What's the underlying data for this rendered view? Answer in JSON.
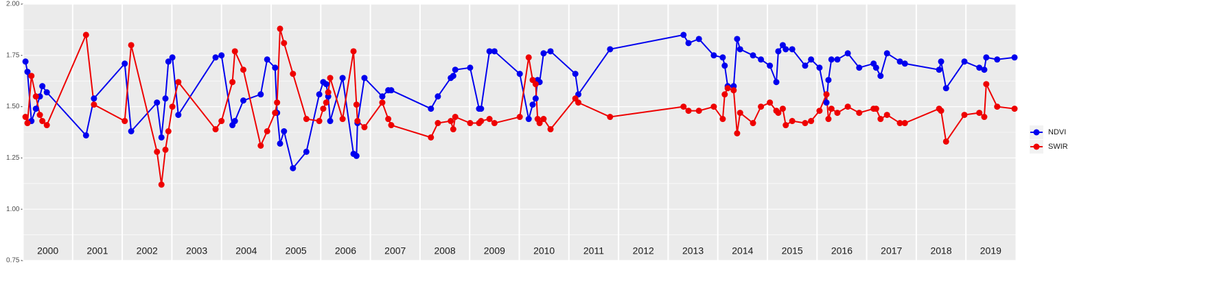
{
  "chart_data": {
    "type": "line",
    "x": [
      2000.05,
      2000.09,
      2000.17,
      2000.26,
      2000.34,
      2000.39,
      2000.48,
      2001.27,
      2001.43,
      2002.05,
      2002.18,
      2002.7,
      2002.79,
      2002.87,
      2002.93,
      2003.01,
      2003.13,
      2003.88,
      2004.0,
      2004.22,
      2004.27,
      2004.44,
      2004.79,
      2004.92,
      2005.08,
      2005.12,
      2005.18,
      2005.26,
      2005.44,
      2005.71,
      2005.97,
      2006.05,
      2006.11,
      2006.15,
      2006.19,
      2006.44,
      2006.66,
      2006.72,
      2006.74,
      2006.88,
      2007.24,
      2007.36,
      2007.42,
      2008.22,
      2008.36,
      2008.62,
      2008.67,
      2008.71,
      2009.01,
      2009.19,
      2009.23,
      2009.4,
      2009.5,
      2010.01,
      2010.19,
      2010.27,
      2010.33,
      2010.37,
      2010.41,
      2010.49,
      2010.63,
      2011.13,
      2011.19,
      2011.83,
      2013.31,
      2013.41,
      2013.62,
      2013.92,
      2014.1,
      2014.14,
      2014.2,
      2014.32,
      2014.39,
      2014.45,
      2014.71,
      2014.87,
      2015.05,
      2015.18,
      2015.22,
      2015.31,
      2015.37,
      2015.5,
      2015.76,
      2015.88,
      2016.05,
      2016.19,
      2016.23,
      2016.29,
      2016.41,
      2016.62,
      2016.85,
      2017.14,
      2017.19,
      2017.28,
      2017.41,
      2017.67,
      2017.77,
      2018.46,
      2018.5,
      2018.6,
      2018.97,
      2019.27,
      2019.37,
      2019.41,
      2019.63,
      2019.98
    ],
    "series": [
      {
        "name": "NDVI",
        "color": "#0000ee",
        "values": [
          1.72,
          1.67,
          1.43,
          1.49,
          1.55,
          1.6,
          1.57,
          1.36,
          1.54,
          1.71,
          1.38,
          1.52,
          1.35,
          1.54,
          1.72,
          1.74,
          1.46,
          1.74,
          1.75,
          1.41,
          1.43,
          1.53,
          1.56,
          1.73,
          1.69,
          1.47,
          1.32,
          1.38,
          1.2,
          1.28,
          1.56,
          1.62,
          1.61,
          1.55,
          1.43,
          1.64,
          1.27,
          1.26,
          1.42,
          1.64,
          1.55,
          1.58,
          1.58,
          1.49,
          1.55,
          1.64,
          1.65,
          1.68,
          1.69,
          1.49,
          1.49,
          1.77,
          1.77,
          1.66,
          1.44,
          1.51,
          1.54,
          1.63,
          1.62,
          1.76,
          1.77,
          1.66,
          1.56,
          1.78,
          1.85,
          1.81,
          1.83,
          1.75,
          1.74,
          1.7,
          1.6,
          1.6,
          1.83,
          1.78,
          1.75,
          1.73,
          1.7,
          1.62,
          1.77,
          1.8,
          1.78,
          1.78,
          1.7,
          1.73,
          1.69,
          1.52,
          1.63,
          1.73,
          1.73,
          1.76,
          1.69,
          1.71,
          1.69,
          1.65,
          1.76,
          1.72,
          1.71,
          1.68,
          1.72,
          1.59,
          1.72,
          1.69,
          1.68,
          1.74,
          1.73,
          1.74
        ]
      },
      {
        "name": "SWIR",
        "color": "#ee0000",
        "values": [
          1.45,
          1.42,
          1.65,
          1.55,
          1.46,
          1.43,
          1.41,
          1.85,
          1.51,
          1.43,
          1.8,
          1.28,
          1.12,
          1.29,
          1.38,
          1.5,
          1.62,
          1.39,
          1.43,
          1.62,
          1.77,
          1.68,
          1.31,
          1.38,
          1.47,
          1.52,
          1.88,
          1.81,
          1.66,
          1.44,
          1.43,
          1.49,
          1.52,
          1.57,
          1.64,
          1.44,
          1.77,
          1.51,
          1.43,
          1.4,
          1.52,
          1.44,
          1.41,
          1.35,
          1.42,
          1.43,
          1.39,
          1.45,
          1.42,
          1.42,
          1.43,
          1.44,
          1.42,
          1.45,
          1.74,
          1.63,
          1.61,
          1.44,
          1.42,
          1.44,
          1.39,
          1.54,
          1.52,
          1.45,
          1.5,
          1.48,
          1.48,
          1.5,
          1.44,
          1.56,
          1.59,
          1.58,
          1.37,
          1.47,
          1.42,
          1.5,
          1.52,
          1.48,
          1.47,
          1.49,
          1.41,
          1.43,
          1.42,
          1.43,
          1.48,
          1.56,
          1.44,
          1.49,
          1.47,
          1.5,
          1.47,
          1.49,
          1.49,
          1.44,
          1.46,
          1.42,
          1.42,
          1.49,
          1.48,
          1.33,
          1.46,
          1.47,
          1.45,
          1.61,
          1.5,
          1.49
        ]
      }
    ],
    "xlim": [
      2000,
      2020
    ],
    "xticks": [
      2000,
      2001,
      2002,
      2003,
      2004,
      2005,
      2006,
      2007,
      2008,
      2009,
      2010,
      2011,
      2012,
      2013,
      2014,
      2015,
      2016,
      2017,
      2018,
      2019
    ],
    "ylim": [
      0.75,
      2.0
    ],
    "yticks": [
      {
        "value": 0.75,
        "label": "0.75"
      },
      {
        "value": 1,
        "label": "1.00"
      },
      {
        "value": 1.25,
        "label": "1.25"
      },
      {
        "value": 1.5,
        "label": "1.50"
      },
      {
        "value": 1.75,
        "label": "1.75"
      },
      {
        "value": 2,
        "label": "2.00"
      }
    ],
    "grid": true,
    "legend": "right"
  }
}
